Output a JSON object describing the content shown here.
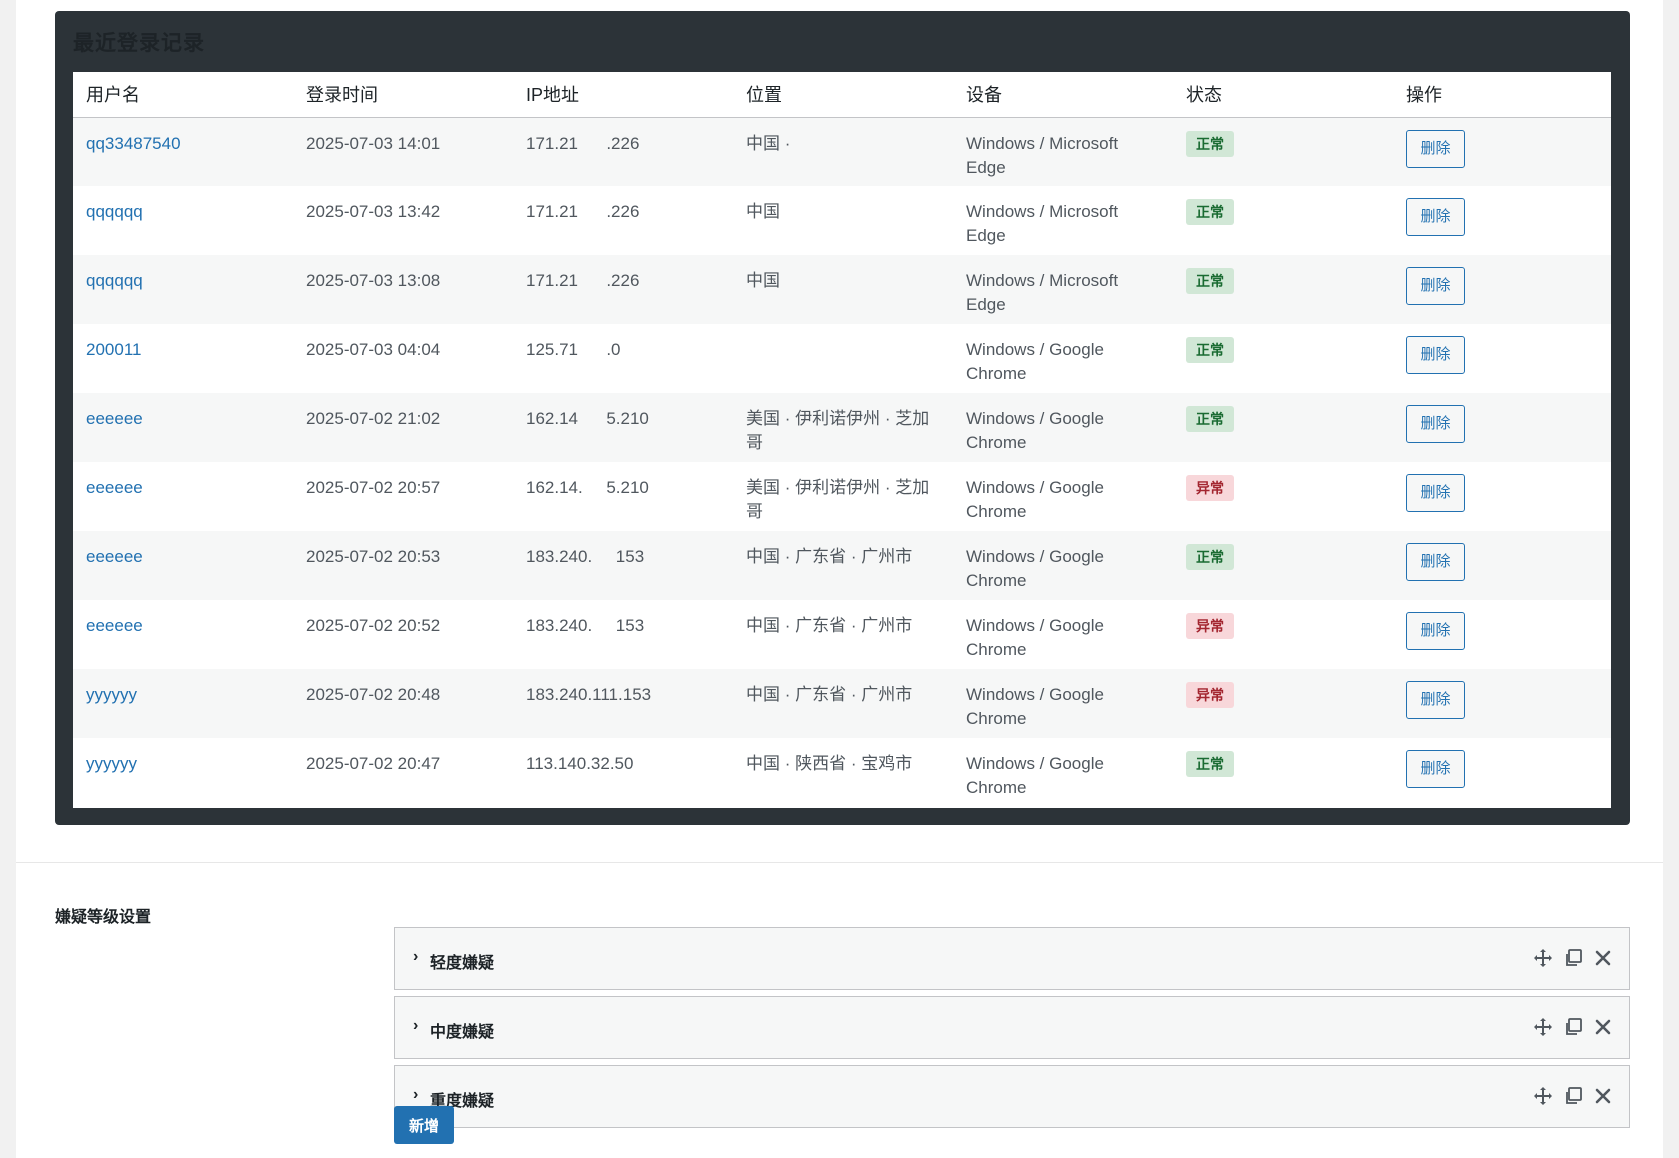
{
  "log_panel": {
    "title": "最近登录记录",
    "columns": [
      "用户名",
      "登录时间",
      "IP地址",
      "位置",
      "设备",
      "状态",
      "操作"
    ],
    "rows": [
      {
        "user": "qq33487540",
        "time": "2025-07-03 14:01",
        "ip": "171.21      .226",
        "location": "中国 ·",
        "device": "Windows / Microsoft Edge",
        "status": "正常",
        "status_type": "ok",
        "action": "删除"
      },
      {
        "user": "qqqqqq",
        "time": "2025-07-03 13:42",
        "ip": "171.21      .226",
        "location": "中国",
        "device": "Windows / Microsoft Edge",
        "status": "正常",
        "status_type": "ok",
        "action": "删除"
      },
      {
        "user": "qqqqqq",
        "time": "2025-07-03 13:08",
        "ip": "171.21      .226",
        "location": "中国",
        "device": "Windows / Microsoft Edge",
        "status": "正常",
        "status_type": "ok",
        "action": "删除"
      },
      {
        "user": "200011",
        "time": "2025-07-03 04:04",
        "ip": "125.71      .0",
        "location": "",
        "device": "Windows / Google Chrome",
        "status": "正常",
        "status_type": "ok",
        "action": "删除"
      },
      {
        "user": "eeeeee",
        "time": "2025-07-02 21:02",
        "ip": "162.14      5.210",
        "location": "美国 · 伊利诺伊州 · 芝加哥",
        "device": "Windows / Google Chrome",
        "status": "正常",
        "status_type": "ok",
        "action": "删除"
      },
      {
        "user": "eeeeee",
        "time": "2025-07-02 20:57",
        "ip": "162.14.     5.210",
        "location": "美国 · 伊利诺伊州 · 芝加哥",
        "device": "Windows / Google Chrome",
        "status": "异常",
        "status_type": "bad",
        "action": "删除"
      },
      {
        "user": "eeeeee",
        "time": "2025-07-02 20:53",
        "ip": "183.240.     153",
        "location": "中国 · 广东省 · 广州市",
        "device": "Windows / Google Chrome",
        "status": "正常",
        "status_type": "ok",
        "action": "删除"
      },
      {
        "user": "eeeeee",
        "time": "2025-07-02 20:52",
        "ip": "183.240.     153",
        "location": "中国 · 广东省 · 广州市",
        "device": "Windows / Google Chrome",
        "status": "异常",
        "status_type": "bad",
        "action": "删除"
      },
      {
        "user": "yyyyyy",
        "time": "2025-07-02 20:48",
        "ip": "183.240.111.153",
        "location": "中国 · 广东省 · 广州市",
        "device": "Windows / Google Chrome",
        "status": "异常",
        "status_type": "bad",
        "action": "删除"
      },
      {
        "user": "yyyyyy",
        "time": "2025-07-02 20:47",
        "ip": "113.140.32.50",
        "location": "中国 · 陕西省 · 宝鸡市",
        "device": "Windows / Google Chrome",
        "status": "正常",
        "status_type": "ok",
        "action": "删除"
      }
    ]
  },
  "suspicion": {
    "label": "嫌疑等级设置",
    "levels": [
      {
        "title": "轻度嫌疑"
      },
      {
        "title": "中度嫌疑"
      },
      {
        "title": "重度嫌疑"
      }
    ],
    "add_label": "新增",
    "icons": [
      "move-icon",
      "duplicate-icon",
      "close-icon"
    ]
  },
  "colors": {
    "panel_bg": "#2c3338",
    "link": "#2271b1",
    "status_ok_bg": "#d1e7d6",
    "status_bad_bg": "#f8d7da",
    "primary_button": "#2271b1"
  }
}
